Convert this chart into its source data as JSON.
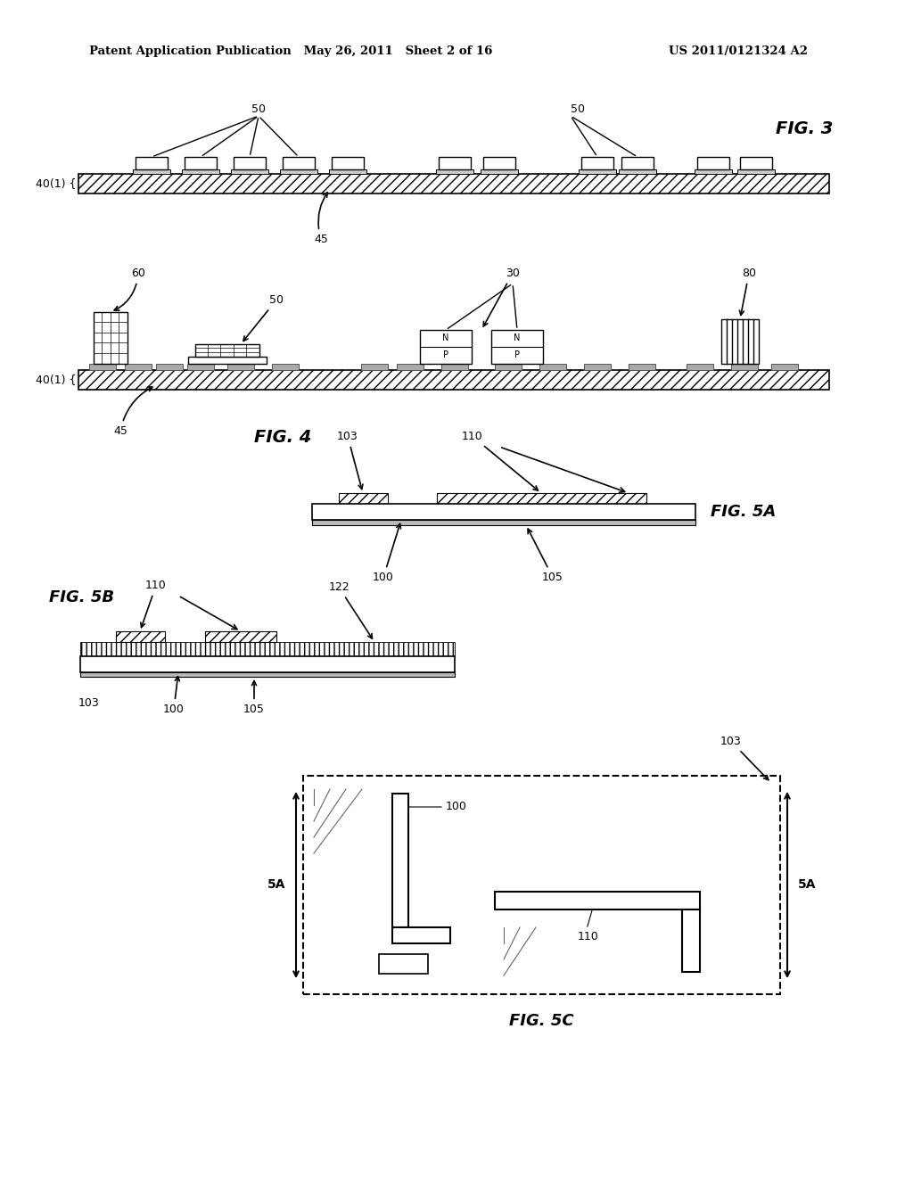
{
  "bg_color": "#ffffff",
  "text_color": "#000000",
  "header_left": "Patent Application Publication   May 26, 2011   Sheet 2 of 16",
  "header_right": "US 2011/0121324 A2",
  "fig3_label": "FIG. 3",
  "fig4_label": "FIG. 4",
  "fig5a_label": "FIG. 5A",
  "fig5b_label": "FIG. 5B",
  "fig5c_label": "FIG. 5C"
}
